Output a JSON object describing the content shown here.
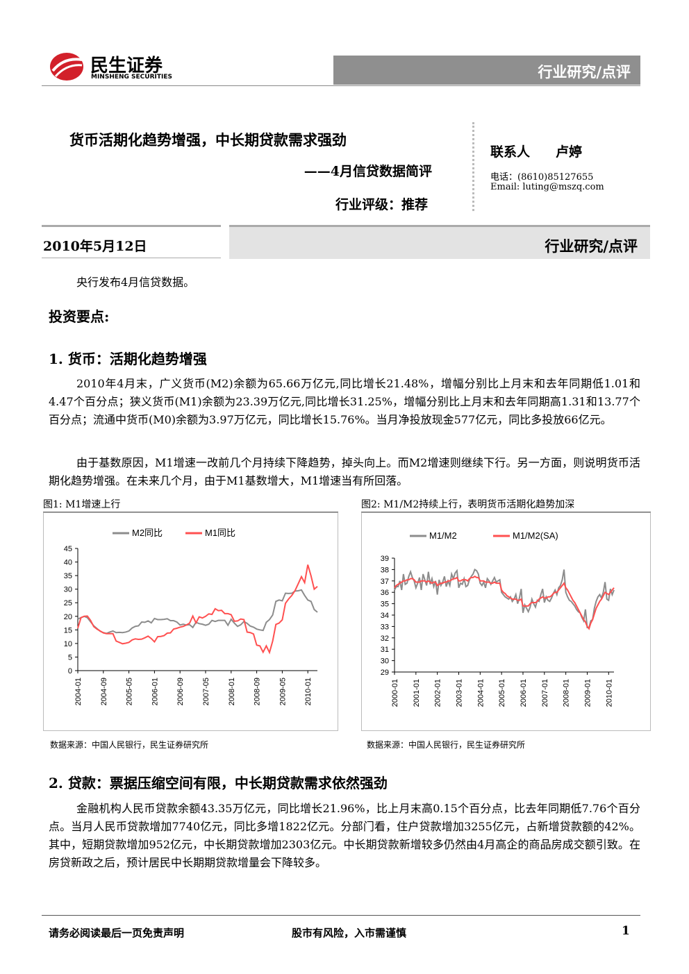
{
  "header": {
    "logo_cn": "民生证券",
    "logo_en": "MINSHENG SECURITIES",
    "section": "行业研究/点评"
  },
  "title_block": {
    "title": "货币活期化趋势增强，中长期贷款需求强劲",
    "subtitle": "——4月信贷数据简评",
    "rating": "行业评级：推荐"
  },
  "contact": {
    "label": "联系人",
    "name": "卢婷",
    "phone": "电话：(8610)85127655",
    "email": "Email:  luting@mszq.com"
  },
  "date_bar": {
    "date": "2010年5月12日",
    "section": "行业研究/点评"
  },
  "intro": "央行发布4月信贷数据。",
  "key_points": "投资要点:",
  "sections": [
    {
      "heading": "1.  货币：活期化趋势增强",
      "paragraphs": [
        "2010年4月末，广义货币(M2)余额为65.66万亿元,同比增长21.48%，增幅分别比上月末和去年同期低1.01和4.47个百分点；狭义货币(M1)余额为23.39万亿元,同比增长31.25%，增幅分别比上月末和去年同期高1.31和13.77个百分点；流通中货币(M0)余额为3.97万亿元，同比增长15.76%。当月净投放现金577亿元，同比多投放66亿元。",
        "由于基数原因，M1增速一改前几个月持续下降趋势，掉头向上。而M2增速则继续下行。另一方面，则说明货币活期化趋势增强。在未来几个月，由于M1基数增大，M1增速当有所回落。"
      ]
    },
    {
      "heading": "2.  贷款：票据压缩空间有限，中长期贷款需求依然强劲",
      "paragraphs": [
        "金融机构人民币贷款余额43.35万亿元，同比增长21.96%，比上月末高0.15个百分点，比去年同期低7.76个百分点。当月人民币贷款增加7740亿元，同比多增1822亿元。分部门看，住户贷款增加3255亿元，占新增贷款额的42%。其中，短期贷款增加952亿元，中长期贷款增加2303亿元。中长期贷款新增较多仍然由4月高企的商品房成交额引致。在房贷新政之后，预计居民中长期期贷款增量会下降较多。"
      ]
    }
  ],
  "chart_data": [
    {
      "type": "line",
      "caption": "图1:  M1增速上行",
      "source": "数据来源：中国人民银行，民生证券研究所",
      "legend": "top",
      "ylim": [
        0,
        45
      ],
      "yticks": [
        0,
        5,
        10,
        15,
        20,
        25,
        30,
        35,
        40,
        45
      ],
      "categories": [
        "2004-01",
        null,
        null,
        null,
        null,
        null,
        null,
        null,
        "2004-09",
        null,
        null,
        null,
        null,
        null,
        null,
        null,
        "2005-05",
        null,
        null,
        null,
        null,
        null,
        null,
        null,
        "2006-01",
        null,
        null,
        null,
        null,
        null,
        null,
        null,
        "2006-09",
        null,
        null,
        null,
        null,
        null,
        null,
        null,
        "2007-05",
        null,
        null,
        null,
        null,
        null,
        null,
        null,
        "2008-01",
        null,
        null,
        null,
        null,
        null,
        null,
        null,
        "2008-09",
        null,
        null,
        null,
        null,
        null,
        null,
        null,
        "2009-05",
        null,
        null,
        null,
        null,
        null,
        null,
        null,
        "2010-01",
        null,
        null,
        null
      ],
      "series": [
        {
          "name": "M2同比",
          "color": "#8c8c8c",
          "values": [
            19,
            19.5,
            20,
            19.5,
            18,
            16.5,
            15.5,
            14.5,
            14,
            13.7,
            14.2,
            14.6,
            14,
            14.1,
            14,
            14.2,
            14.6,
            15.7,
            16.3,
            16.5,
            17.9,
            17.8,
            18.3,
            17.6,
            19.2,
            18.8,
            18.8,
            18.9,
            19.1,
            18.4,
            18.4,
            17.9,
            16.8,
            17.1,
            16.8,
            16.9,
            15.9,
            17.8,
            17.3,
            17.1,
            16.7,
            17.1,
            18.5,
            18.1,
            18.5,
            18.5,
            18.5,
            16.7,
            18.9,
            17.5,
            16.3,
            16.9,
            18.1,
            17.4,
            16.4,
            16,
            15.3,
            15,
            14.8,
            17.8,
            18.8,
            20.5,
            25.5,
            26,
            25.7,
            28.5,
            28.4,
            28.5,
            29.3,
            29.4,
            29.7,
            27.7,
            26,
            25.5,
            22.5,
            21.5
          ]
        },
        {
          "name": "M1同比",
          "color": "#ff5050",
          "values": [
            15.6,
            19.5,
            20,
            20.1,
            18.5,
            16.2,
            15.3,
            14.6,
            13.9,
            13.6,
            13.6,
            13.6,
            10.9,
            10.4,
            9.9,
            10.1,
            10.4,
            11.3,
            11.7,
            11.5,
            11.6,
            12.1,
            12.7,
            11.8,
            10.6,
            12.5,
            12.6,
            12.9,
            13.8,
            13.9,
            15.3,
            15.6,
            16,
            16.3,
            16.8,
            17.5,
            20.1,
            17.6,
            19.8,
            19.4,
            20,
            20.9,
            20.7,
            22.8,
            22.1,
            22.2,
            21,
            21,
            20.6,
            18.2,
            18.3,
            19,
            18.8,
            14.2,
            14,
            13.5,
            9.4,
            9.1,
            6.8,
            9.1,
            6.7,
            10.9,
            17,
            17.5,
            18.7,
            24.8,
            26.4,
            27.7,
            29.5,
            32,
            34.6,
            32.4,
            39,
            34.9,
            30,
            31
          ]
        }
      ]
    },
    {
      "type": "line",
      "caption": "图2:  M1/M2持续上行，表明货币活期化趋势加深",
      "source": "数据来源：中国人民银行，民生证券研究所",
      "legend": "top",
      "ylim": [
        29,
        39
      ],
      "yticks": [
        29,
        30,
        31,
        32,
        33,
        34,
        35,
        36,
        37,
        38,
        39
      ],
      "categories": [
        "2000-01",
        null,
        null,
        null,
        null,
        null,
        null,
        null,
        null,
        null,
        null,
        null,
        "2001-01",
        null,
        null,
        null,
        null,
        null,
        null,
        null,
        null,
        null,
        null,
        null,
        "2002-01",
        null,
        null,
        null,
        null,
        null,
        null,
        null,
        null,
        null,
        null,
        null,
        "2003-01",
        null,
        null,
        null,
        null,
        null,
        null,
        null,
        null,
        null,
        null,
        null,
        "2004-01",
        null,
        null,
        null,
        null,
        null,
        null,
        null,
        null,
        null,
        null,
        null,
        "2005-01",
        null,
        null,
        null,
        null,
        null,
        null,
        null,
        null,
        null,
        null,
        null,
        "2006-01",
        null,
        null,
        null,
        null,
        null,
        null,
        null,
        null,
        null,
        null,
        null,
        "2007-01",
        null,
        null,
        null,
        null,
        null,
        null,
        null,
        null,
        null,
        null,
        null,
        "2008-01",
        null,
        null,
        null,
        null,
        null,
        null,
        null,
        null,
        null,
        null,
        null,
        "2009-01",
        null,
        null,
        null,
        null,
        null,
        null,
        null,
        null,
        null,
        null,
        null,
        "2010-01",
        null,
        null,
        null
      ],
      "series": [
        {
          "name": "M1/M2",
          "color": "#8c8c8c",
          "values": [
            36.2,
            36.5,
            36.5,
            37,
            36.2,
            37.6,
            36.7,
            36.8,
            37.4,
            37.8,
            37.3,
            37,
            36.4,
            36.8,
            37.3,
            36.2,
            37.6,
            37.1,
            36.6,
            37.8,
            36.7,
            37.2,
            36.5,
            37,
            35.8,
            37.1,
            36.6,
            36.9,
            37.4,
            36.5,
            37,
            36.6,
            37.6,
            37.2,
            37.7,
            37.9,
            36.4,
            36.8,
            36.7,
            37.2,
            36.5,
            36.6,
            37.1,
            37.4,
            37.6,
            38,
            37.9,
            37.6,
            36.8,
            36.6,
            36.9,
            36.4,
            37.2,
            37,
            36.7,
            37,
            37.3,
            36.9,
            37,
            37.1,
            36,
            35.8,
            35.6,
            35.5,
            35.4,
            35.6,
            35.2,
            35.4,
            35.8,
            35,
            35.5,
            36.3,
            34.2,
            34.9,
            34.6,
            34.3,
            34.7,
            35.4,
            35,
            34.7,
            35.3,
            35.2,
            35.8,
            36.3,
            35.1,
            35.6,
            35.3,
            35.2,
            35.5,
            35.9,
            36.2,
            35.8,
            36.4,
            36.6,
            37.1,
            38,
            36,
            35.6,
            35.3,
            35.2,
            35,
            34.8,
            34.5,
            34.3,
            34.2,
            33.8,
            33.5,
            34.5,
            32.9,
            32.9,
            33.5,
            33.6,
            34.6,
            35.2,
            35.6,
            35.8,
            35.5,
            36,
            36.9,
            35.4,
            35.3,
            36.3,
            35.8,
            36.2
          ]
        },
        {
          "name": "M1/M2(SA)",
          "color": "#ff5050",
          "values": [
            36.4,
            36.6,
            36.7,
            36.8,
            36.9,
            37,
            37,
            37.1,
            37.1,
            37.2,
            37.2,
            37.1,
            36.9,
            36.9,
            36.9,
            37,
            37,
            37,
            36.9,
            37,
            36.9,
            36.8,
            36.9,
            36.9,
            36.6,
            36.7,
            36.8,
            36.8,
            36.9,
            36.9,
            37,
            37,
            37.1,
            37.2,
            37.2,
            37.3,
            37,
            37,
            37.1,
            37.1,
            37.1,
            37,
            37.2,
            37.3,
            37.3,
            37.4,
            37.3,
            37.3,
            37,
            37,
            37,
            36.9,
            36.9,
            36.9,
            36.8,
            36.8,
            36.9,
            36.8,
            36.8,
            36.8,
            36.2,
            36,
            35.9,
            35.7,
            35.6,
            35.5,
            35.4,
            35.4,
            35.4,
            35.3,
            35.3,
            35.4,
            34.8,
            34.8,
            34.8,
            34.8,
            35,
            35.1,
            35.1,
            35.1,
            35.2,
            35.4,
            35.5,
            35.6,
            35.5,
            35.5,
            35.6,
            35.6,
            35.7,
            35.9,
            36,
            36,
            36.2,
            36.4,
            36.6,
            36.8,
            36.4,
            36.2,
            35.9,
            35.6,
            35.3,
            35.1,
            34.8,
            34.5,
            34.2,
            33.9,
            33.6,
            33.4,
            33,
            32.8,
            33.3,
            33.6,
            34.1,
            34.6,
            34.9,
            35.2,
            35.4,
            35.7,
            36,
            35.9,
            35.8,
            36,
            36.2,
            36.4
          ]
        }
      ]
    }
  ],
  "footer": {
    "left": "请务必阅读最后一页免责声明",
    "center": "股市有风险，入市需谨慎",
    "page": "1"
  }
}
